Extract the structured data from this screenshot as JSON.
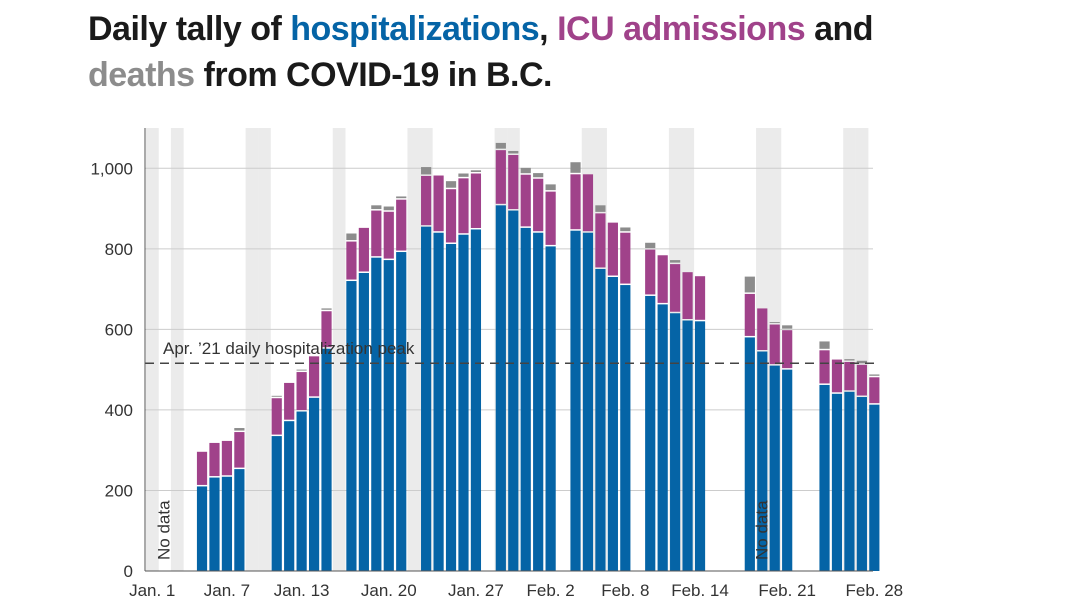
{
  "title": {
    "part1": "Daily tally of ",
    "hosp": "hospitalizations",
    "part2": ", ",
    "icu": "ICU admissions",
    "part3": " and",
    "deaths": "deaths",
    "part4": " from COVID-19 in B.C."
  },
  "colors": {
    "hospitalizations": "#0564a6",
    "icu": "#a0428a",
    "deaths": "#8c8c8c",
    "weekend_band": "#ebebeb",
    "grid": "#cccccc",
    "reference_line": "#444444"
  },
  "chart_data": {
    "type": "bar",
    "stacked": true,
    "ylim": [
      0,
      1100
    ],
    "yticks": [
      0,
      200,
      400,
      600,
      800,
      1000
    ],
    "ytick_labels": [
      "0",
      "200",
      "400",
      "600",
      "800",
      "1,000"
    ],
    "grid": true,
    "xtick_labels": [
      "Jan. 1",
      "Jan. 7",
      "Jan. 13",
      "Jan. 20",
      "Jan. 27",
      "Feb. 2",
      "Feb. 8",
      "Feb. 14",
      "Feb. 21",
      "Feb. 28"
    ],
    "series": [
      {
        "name": "hospitalizations",
        "values": [
          null,
          null,
          null,
          null,
          210,
          232,
          234,
          253,
          null,
          null,
          335,
          372,
          396,
          430,
          552,
          null,
          720,
          740,
          778,
          772,
          792,
          null,
          855,
          840,
          812,
          835,
          848,
          null,
          908,
          895,
          852,
          840,
          806,
          null,
          845,
          840,
          750,
          730,
          710,
          null,
          683,
          662,
          640,
          622,
          620,
          null,
          null,
          null,
          580,
          545,
          510,
          500,
          null,
          null,
          462,
          440,
          445,
          432,
          413
        ]
      },
      {
        "name": "ICU admissions",
        "values": [
          null,
          null,
          null,
          null,
          86,
          86,
          89,
          92,
          null,
          null,
          94,
          95,
          98,
          103,
          93,
          null,
          98,
          112,
          117,
          120,
          130,
          null,
          126,
          142,
          136,
          140,
          139,
          null,
          137,
          138,
          132,
          134,
          136,
          null,
          140,
          145,
          138,
          135,
          130,
          null,
          115,
          122,
          122,
          120,
          112,
          null,
          null,
          null,
          108,
          107,
          102,
          98,
          null,
          null,
          86,
          85,
          74,
          80,
          68
        ]
      },
      {
        "name": "deaths",
        "values": [
          null,
          null,
          null,
          null,
          0,
          0,
          0,
          10,
          null,
          null,
          6,
          0,
          6,
          0,
          7,
          null,
          20,
          0,
          13,
          13,
          8,
          null,
          22,
          0,
          20,
          12,
          8,
          null,
          18,
          10,
          17,
          14,
          18,
          null,
          30,
          0,
          20,
          0,
          13,
          null,
          17,
          0,
          10,
          0,
          0,
          null,
          null,
          null,
          43,
          0,
          6,
          12,
          null,
          null,
          22,
          0,
          7,
          10,
          7
        ]
      }
    ],
    "weekend_band_days": [
      0,
      2,
      8,
      9,
      15,
      21,
      22,
      28,
      29,
      35,
      36,
      42,
      43,
      49,
      50,
      56,
      57
    ],
    "no_data_label": "No data",
    "no_data_days": [
      1,
      49
    ],
    "reference_line": {
      "value": 516,
      "label": "Apr. ’21 daily hospitalization peak"
    }
  }
}
